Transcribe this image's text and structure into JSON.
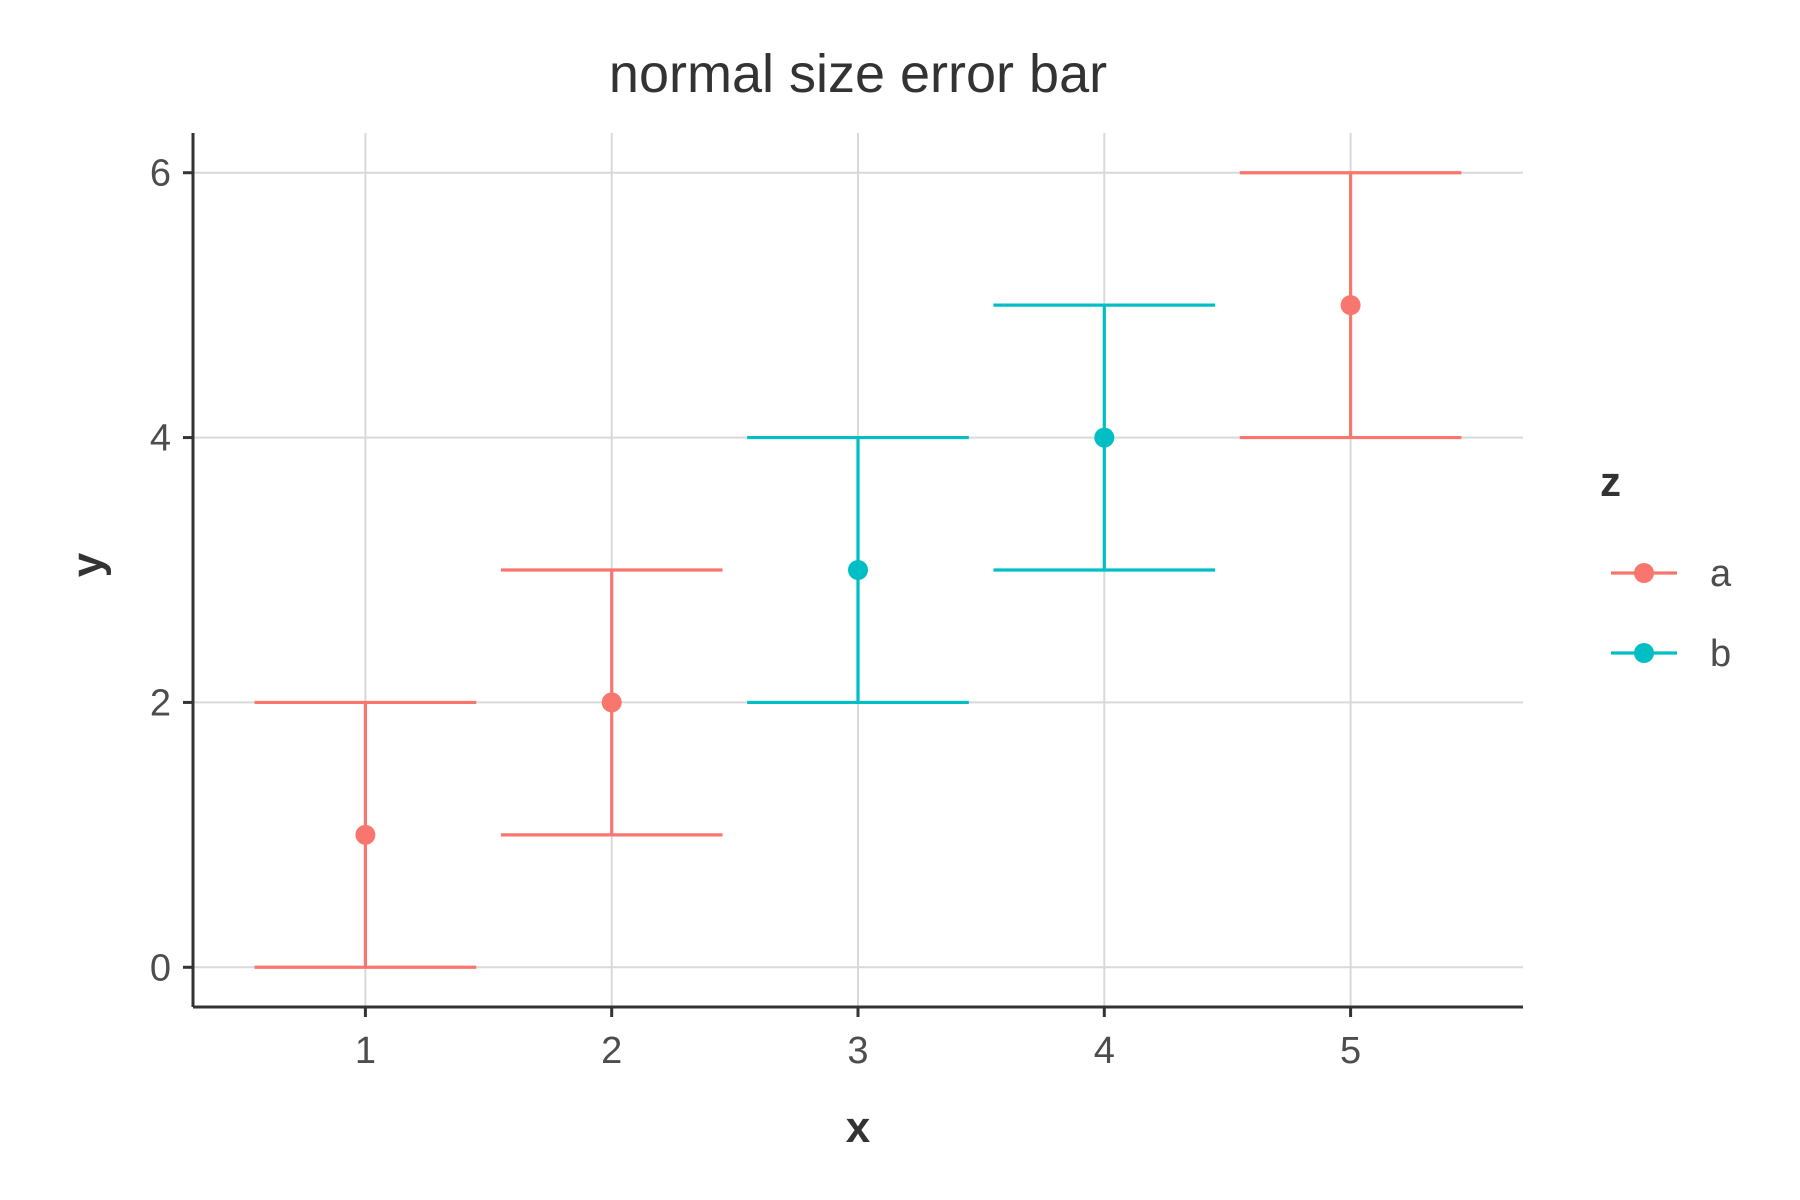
{
  "chart_data": {
    "type": "scatter",
    "title": "normal size error bar",
    "xlabel": "x",
    "ylabel": "y",
    "xlim": [
      0.3,
      5.7
    ],
    "ylim": [
      -0.3,
      6.3
    ],
    "xticks": [
      1,
      2,
      3,
      4,
      5
    ],
    "yticks": [
      0,
      2,
      4,
      6
    ],
    "grid": true,
    "legend": {
      "title": "z",
      "placement": "right"
    },
    "series": [
      {
        "name": "a",
        "color": "#F8766D",
        "points": [
          {
            "x": 1,
            "y": 1,
            "ymin": 0,
            "ymax": 2
          },
          {
            "x": 2,
            "y": 2,
            "ymin": 1,
            "ymax": 3
          },
          {
            "x": 5,
            "y": 5,
            "ymin": 4,
            "ymax": 6
          }
        ]
      },
      {
        "name": "b",
        "color": "#00BFC4",
        "points": [
          {
            "x": 3,
            "y": 3,
            "ymin": 2,
            "ymax": 4
          },
          {
            "x": 4,
            "y": 4,
            "ymin": 3,
            "ymax": 5
          }
        ]
      }
    ],
    "errorbar_width": 0.9
  }
}
